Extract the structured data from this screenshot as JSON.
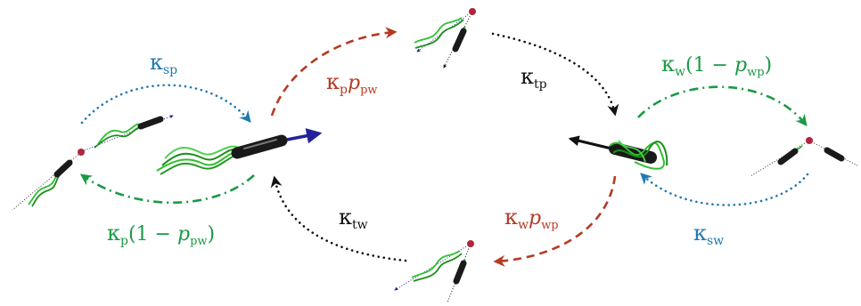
{
  "colors": {
    "blue": "#1f78b4",
    "red": "#b53a22",
    "green": "#1a9a45",
    "black": "#111111",
    "navy": "#22229a",
    "flagella": "#2fbf2f"
  },
  "labels": {
    "sp": {
      "symbol": "κ",
      "sub": "sp"
    },
    "ppw": {
      "symbol": "κ",
      "sub": "p",
      "prob": "p",
      "prob_sub": "pw"
    },
    "tp": {
      "symbol": "κ",
      "sub": "tp"
    },
    "wwp": {
      "symbol": "κ",
      "sub": "w",
      "open": "(1 − ",
      "prob": "p",
      "prob_sub": "wp",
      "close": ")"
    },
    "tw": {
      "symbol": "κ",
      "sub": "tw"
    },
    "wpwp": {
      "symbol": "κ",
      "sub": "w",
      "prob": "p",
      "prob_sub": "wp"
    },
    "sw": {
      "symbol": "κ",
      "sub": "sw"
    },
    "p1ppw": {
      "symbol": "κ",
      "sub": "p",
      "open": "(1 − ",
      "prob": "p",
      "prob_sub": "pw",
      "close": ")"
    }
  }
}
